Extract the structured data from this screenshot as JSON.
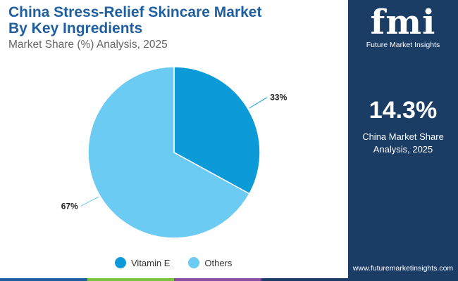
{
  "title_line1": "China Stress-Relief Skincare Market",
  "title_line2": "By Key Ingredients",
  "subtitle": "Market Share (%) Analysis, 2025",
  "chart_data": {
    "type": "pie",
    "slices": [
      {
        "label": "Vitamin E",
        "value": 33,
        "display": "33%",
        "color": "#0d9ad8"
      },
      {
        "label": "Others",
        "value": 67,
        "display": "67%",
        "color": "#6ccbf2"
      }
    ],
    "legend_position": "bottom"
  },
  "sidebar": {
    "logo_letters": "fmi",
    "logo_text": "Future Market Insights",
    "stat_value": "14.3%",
    "stat_label_line1": "China Market Share",
    "stat_label_line2": "Analysis, 2025",
    "url": "www.futuremarketinsights.com"
  },
  "colors": {
    "sidebar_bg": "#1b3c64",
    "title": "#1f5fa0",
    "bottom_bar": [
      "#1f5fa0",
      "#7cc242",
      "#8a4fa0",
      "#1b3c64"
    ]
  }
}
